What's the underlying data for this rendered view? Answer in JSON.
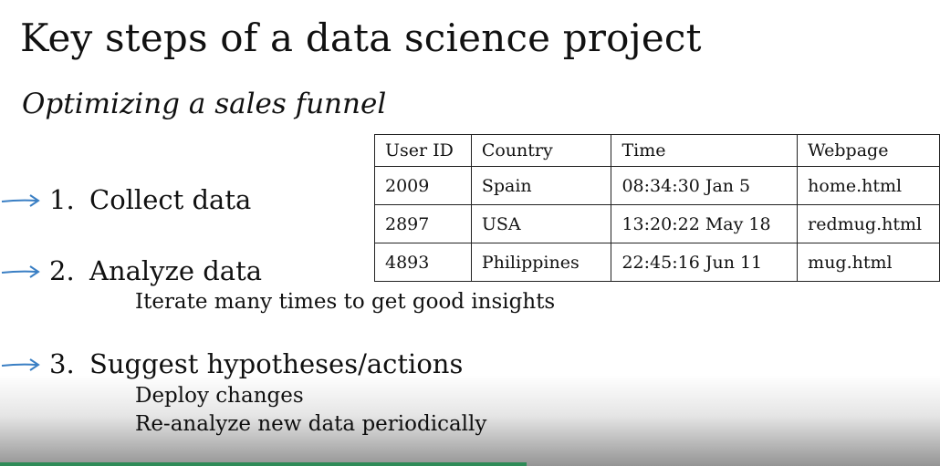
{
  "slide": {
    "title": "Key steps of a data science project",
    "subtitle": "Optimizing a sales funnel",
    "steps": [
      {
        "number": "1.",
        "label": "Collect data",
        "details": []
      },
      {
        "number": "2.",
        "label": "Analyze data",
        "details": [
          "Iterate many times to get good insights"
        ]
      },
      {
        "number": "3.",
        "label": "Suggest hypotheses/actions",
        "details": [
          "Deploy changes",
          "Re-analyze new data periodically"
        ]
      }
    ],
    "table": {
      "headers": [
        "User ID",
        "Country",
        "Time",
        "Webpage"
      ],
      "rows": [
        [
          "2009",
          "Spain",
          "08:34:30 Jan 5",
          "home.html"
        ],
        [
          "2897",
          "USA",
          "13:20:22 May 18",
          "redmug.html"
        ],
        [
          "4893",
          "Philippines",
          "22:45:16 Jun 11",
          "mug.html"
        ]
      ]
    }
  },
  "colors": {
    "arrow": "#3a7fc4",
    "text": "#111111",
    "progress": "#2e8b57"
  },
  "video": {
    "progress_fraction": 0.56
  }
}
